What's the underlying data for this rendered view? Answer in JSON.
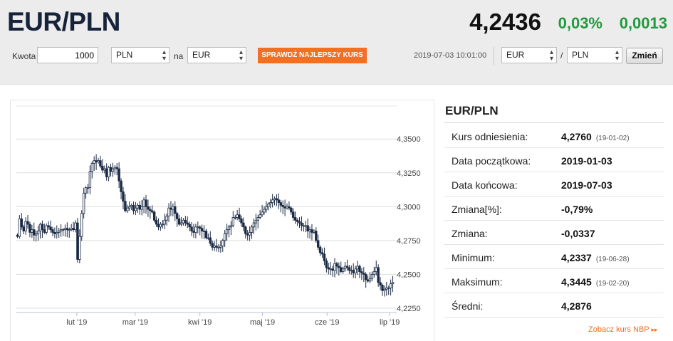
{
  "header": {
    "title": "EUR/PLN",
    "rate": "4,2436",
    "change_pct": "0,03%",
    "change_abs": "0,0013"
  },
  "converter": {
    "amount_label": "Kwota",
    "amount_value": "1000",
    "from_currency": "PLN",
    "na_label": "na",
    "to_currency": "EUR",
    "check_button": "SPRAWDŹ NAJLEPSZY KURS",
    "datetime": "2019-07-03 10:01:00",
    "pair_base": "EUR",
    "slash": "/",
    "pair_quote": "PLN",
    "change_button": "Zmień"
  },
  "colors": {
    "accent": "#f36f21",
    "positive": "#1f9a3c",
    "title": "#17233a"
  },
  "icons": {
    "select_arrow": "updown-arrow-icon",
    "link_arrow": "double-chevron-right-icon"
  },
  "info": {
    "title": "EUR/PLN",
    "rows": [
      {
        "label": "Kurs odniesienia:",
        "value": "4,2760",
        "date": "(19-01-02)"
      },
      {
        "label": "Data początkowa:",
        "value": "2019-01-03",
        "date": ""
      },
      {
        "label": "Data końcowa:",
        "value": "2019-07-03",
        "date": ""
      },
      {
        "label": "Zmiana[%]:",
        "value": "-0,79%",
        "date": ""
      },
      {
        "label": "Zmiana:",
        "value": "-0,0337",
        "date": ""
      },
      {
        "label": "Minimum:",
        "value": "4,2337",
        "date": "(19-06-28)"
      },
      {
        "label": "Maksimum:",
        "value": "4,3445",
        "date": "(19-02-20)"
      },
      {
        "label": "Średni:",
        "value": "4,2876",
        "date": ""
      }
    ],
    "nbp_link": "Zobacz kurs NBP"
  },
  "chart_data": {
    "type": "candlestick",
    "x_tick_labels": [
      "lut '19",
      "mar '19",
      "kwi '19",
      "maj '19",
      "cze '19",
      "lip '19"
    ],
    "y_tick_labels": [
      "4,3500",
      "4,3250",
      "4,3000",
      "4,2750",
      "4,2500",
      "4,2250"
    ],
    "y_ticks": [
      4.35,
      4.325,
      4.3,
      4.275,
      4.25,
      4.225
    ],
    "ylim": [
      4.2218,
      4.3743
    ],
    "x_tick_days": [
      29,
      57,
      88,
      118,
      149,
      179
    ],
    "x_range_days": [
      0,
      181
    ],
    "grid": "horizontal",
    "close_series": [
      4.278,
      4.291,
      4.285,
      4.282,
      4.289,
      4.287,
      4.281,
      4.283,
      4.279,
      4.28,
      4.282,
      4.287,
      4.283,
      4.281,
      4.286,
      4.285,
      4.283,
      4.281,
      4.28,
      4.281,
      4.282,
      4.283,
      4.283,
      4.284,
      4.283,
      4.283,
      4.284,
      4.283,
      4.288,
      4.261,
      4.278,
      4.295,
      4.31,
      4.314,
      4.314,
      4.326,
      4.332,
      4.334,
      4.333,
      4.334,
      4.33,
      4.327,
      4.328,
      4.322,
      4.329,
      4.326,
      4.328,
      4.329,
      4.328,
      4.319,
      4.311,
      4.304,
      4.297,
      4.299,
      4.3,
      4.301,
      4.297,
      4.299,
      4.301,
      4.298,
      4.3,
      4.305,
      4.3,
      4.298,
      4.297,
      4.296,
      4.29,
      4.287,
      4.285,
      4.287,
      4.287,
      4.29,
      4.293,
      4.299,
      4.298,
      4.3,
      4.295,
      4.291,
      4.287,
      4.288,
      4.29,
      4.288,
      4.287,
      4.285,
      4.282,
      4.281,
      4.285,
      4.285,
      4.284,
      4.282,
      4.282,
      4.277,
      4.277,
      4.273,
      4.27,
      4.271,
      4.27,
      4.27,
      4.271,
      4.275,
      4.28,
      4.283,
      4.285,
      4.286,
      4.292,
      4.292,
      4.294,
      4.291,
      4.288,
      4.285,
      4.28,
      4.279,
      4.281,
      4.285,
      4.288,
      4.29,
      4.292,
      4.294,
      4.296,
      4.298,
      4.3,
      4.302,
      4.303,
      4.305,
      4.306,
      4.305,
      4.303,
      4.301,
      4.3,
      4.299,
      4.3,
      4.299,
      4.296,
      4.292,
      4.29,
      4.289,
      4.288,
      4.286,
      4.286,
      4.286,
      4.282,
      4.283,
      4.281,
      4.282,
      4.275,
      4.27,
      4.266,
      4.265,
      4.26,
      4.255,
      4.254,
      4.254,
      4.253,
      4.258,
      4.256,
      4.255,
      4.252,
      4.254,
      4.256,
      4.255,
      4.253,
      4.253,
      4.251,
      4.254,
      4.256,
      4.252,
      4.251,
      4.25,
      4.246,
      4.245,
      4.247,
      4.25,
      4.252,
      4.255,
      4.244,
      4.242,
      4.238,
      4.239,
      4.24,
      4.24,
      4.243,
      4.244
    ]
  }
}
